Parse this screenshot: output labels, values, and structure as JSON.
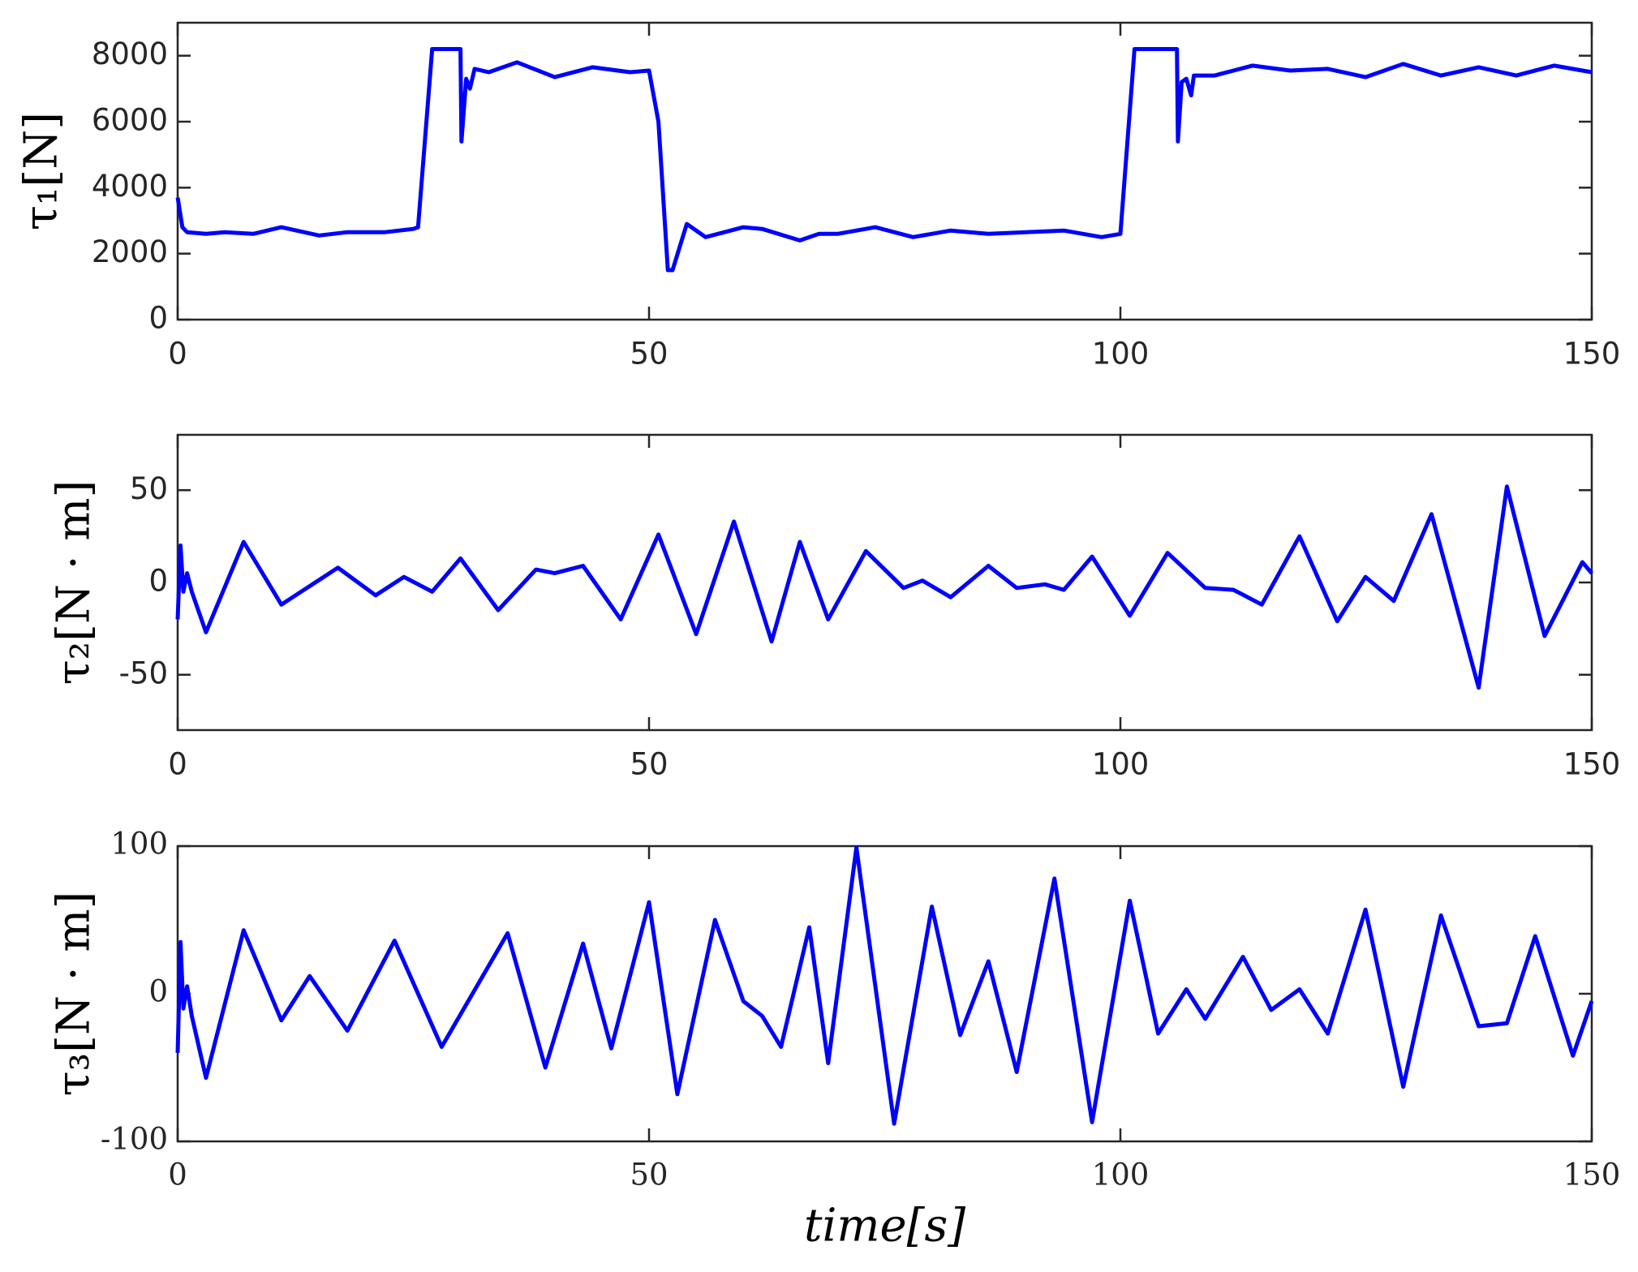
{
  "chart_data": [
    {
      "type": "line",
      "ylabel": "τ₁[N]",
      "xlim": [
        0,
        150
      ],
      "xticks": [
        0,
        50,
        100,
        150
      ],
      "ylim": [
        0,
        9000
      ],
      "yticks": [
        0,
        2000,
        4000,
        6000,
        8000
      ],
      "color": "#0000ff",
      "x": [
        0,
        0.5,
        1,
        3,
        5,
        8,
        11,
        15,
        18,
        22,
        25,
        25.5,
        27,
        30,
        30.1,
        30.6,
        31,
        31.5,
        33,
        36,
        40,
        44,
        48,
        50,
        51,
        52,
        52.5,
        54,
        56,
        60,
        62,
        66,
        68,
        70,
        74,
        78,
        82,
        86,
        90,
        94,
        98,
        100,
        101.5,
        106,
        106.1,
        106.5,
        107,
        107.5,
        107.8,
        110,
        114,
        118,
        122,
        126,
        130,
        134,
        138,
        142,
        146,
        150
      ],
      "values": [
        3700,
        2800,
        2650,
        2600,
        2650,
        2600,
        2800,
        2550,
        2650,
        2650,
        2750,
        2800,
        8200,
        8200,
        5400,
        7300,
        7000,
        7600,
        7500,
        7800,
        7350,
        7650,
        7500,
        7550,
        6000,
        1500,
        1500,
        2900,
        2500,
        2800,
        2750,
        2400,
        2600,
        2600,
        2800,
        2500,
        2700,
        2600,
        2650,
        2700,
        2500,
        2600,
        8200,
        8200,
        5400,
        7200,
        7300,
        6800,
        7400,
        7400,
        7700,
        7550,
        7600,
        7350,
        7750,
        7400,
        7650,
        7400,
        7700,
        7500
      ]
    },
    {
      "type": "line",
      "ylabel": "τ₂[N · m]",
      "xlim": [
        0,
        150
      ],
      "xticks": [
        0,
        50,
        100,
        150
      ],
      "ylim": [
        -80,
        80
      ],
      "yticks": [
        -50,
        0,
        50
      ],
      "color": "#0000ff",
      "x": [
        0,
        0.3,
        0.6,
        1,
        1.5,
        3,
        7,
        11,
        17,
        21,
        24,
        27,
        30,
        34,
        38,
        40,
        43,
        47,
        51,
        55,
        59,
        63,
        66,
        69,
        73,
        77,
        79,
        82,
        86,
        89,
        92,
        94,
        97,
        101,
        105,
        109,
        112,
        115,
        119,
        123,
        126,
        129,
        133,
        138,
        141,
        145,
        149,
        150
      ],
      "values": [
        -20,
        20,
        -5,
        5,
        -5,
        -27,
        22,
        -12,
        8,
        -7,
        3,
        -5,
        13,
        -15,
        7,
        5,
        9,
        -20,
        26,
        -28,
        33,
        -32,
        22,
        -20,
        17,
        -3,
        1,
        -8,
        9,
        -3,
        -1,
        -4,
        14,
        -18,
        16,
        -3,
        -4,
        -12,
        25,
        -21,
        3,
        -10,
        37,
        -57,
        52,
        -29,
        11,
        5
      ]
    },
    {
      "type": "line",
      "ylabel": "τ₃[N · m]",
      "xlabel": "time[s]",
      "xlim": [
        0,
        150
      ],
      "xticks": [
        0,
        50,
        100,
        150
      ],
      "ylim": [
        -100,
        100
      ],
      "yticks": [
        -100,
        0,
        100
      ],
      "color": "#0000ff",
      "x": [
        0,
        0.3,
        0.6,
        1,
        1.5,
        3,
        7,
        11,
        14,
        18,
        23,
        28,
        35,
        39,
        43,
        46,
        50,
        53,
        57,
        60,
        62,
        64,
        67,
        69,
        72,
        76,
        80,
        83,
        86,
        89,
        93,
        97,
        101,
        104,
        107,
        109,
        113,
        116,
        119,
        122,
        126,
        130,
        134,
        138,
        141,
        144,
        148,
        150
      ],
      "values": [
        -40,
        35,
        -10,
        5,
        -15,
        -57,
        43,
        -18,
        12,
        -25,
        36,
        -36,
        41,
        -50,
        34,
        -37,
        62,
        -68,
        50,
        -5,
        -15,
        -36,
        45,
        -47,
        99,
        -88,
        59,
        -28,
        22,
        -53,
        78,
        -87,
        63,
        -27,
        3,
        -17,
        25,
        -11,
        3,
        -27,
        57,
        -63,
        53,
        -22,
        -20,
        39,
        -42,
        -5
      ]
    }
  ]
}
